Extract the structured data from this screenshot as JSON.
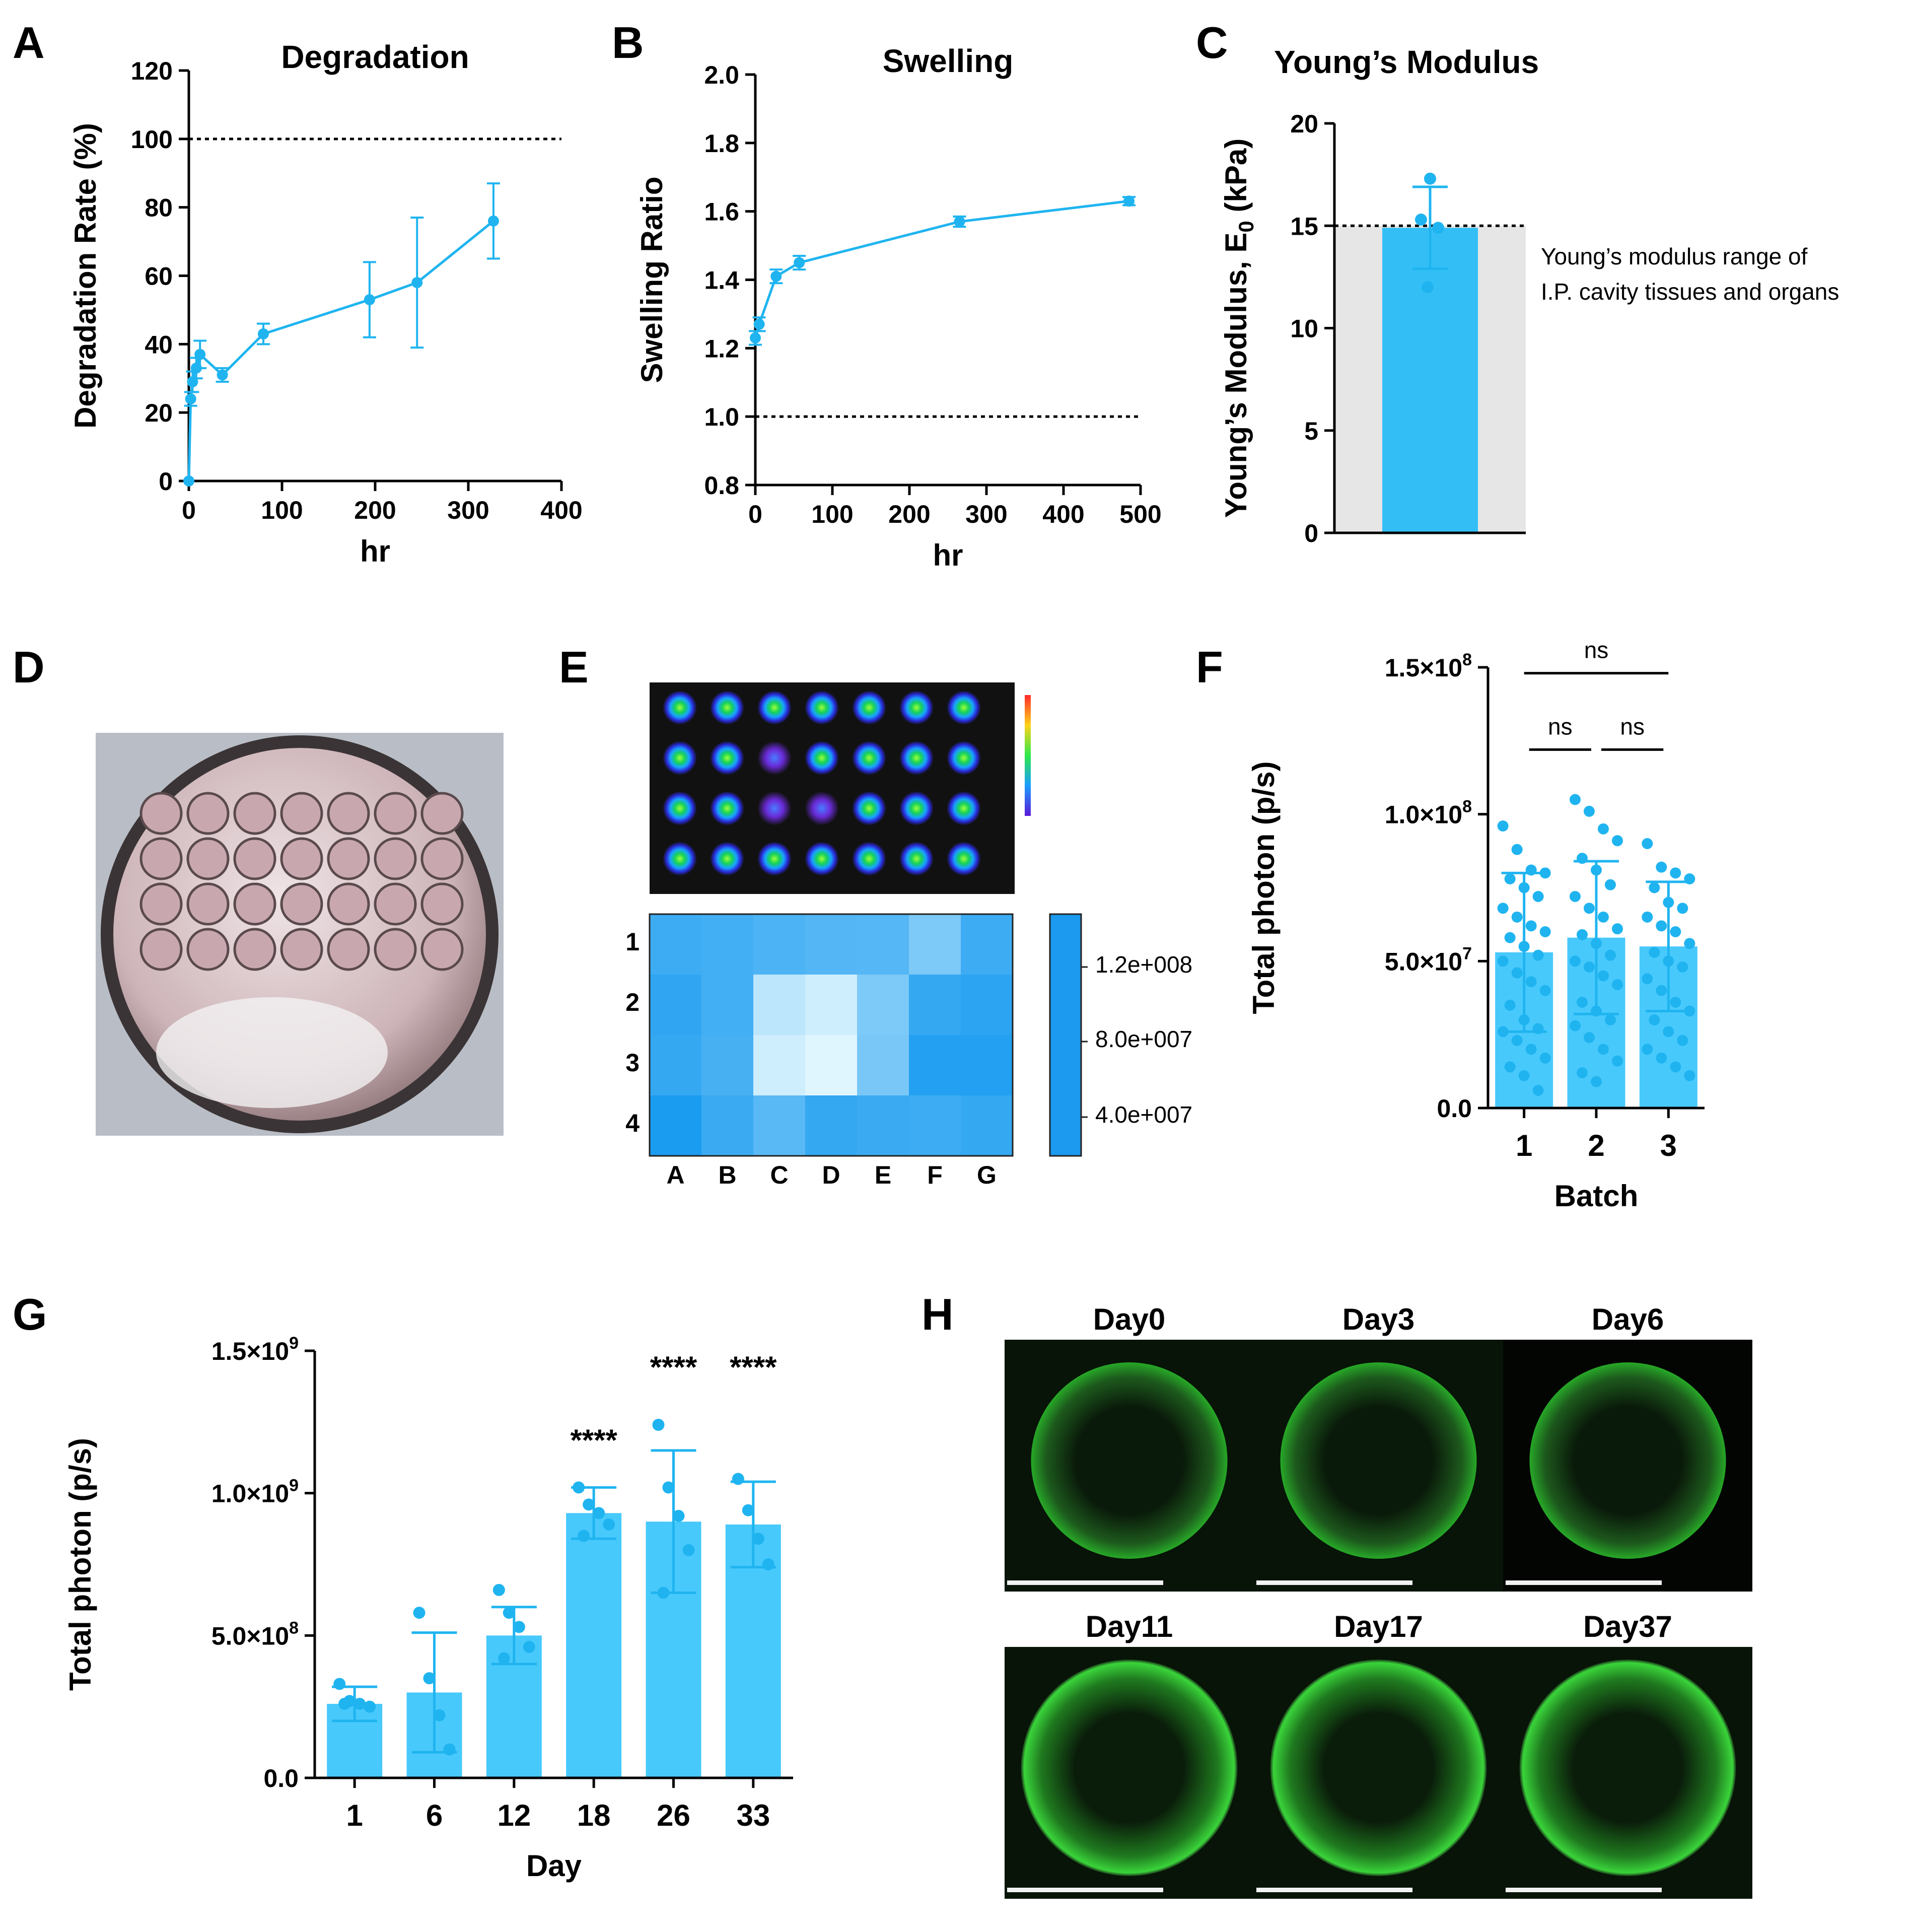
{
  "panels": {
    "A": "A",
    "B": "B",
    "C": "C",
    "D": "D",
    "E": "E",
    "F": "F",
    "G": "G",
    "H": "H"
  },
  "colors": {
    "accent": "#1fb4f0",
    "bar": "#48c9fc",
    "grey_band": "#e6e6e6",
    "fluor": "#1ed41e"
  },
  "chart_data": [
    {
      "id": "A",
      "type": "line",
      "title": "Degradation",
      "xlabel": "hr",
      "ylabel": "Degradation Rate (%)",
      "xlim": [
        0,
        400
      ],
      "ylim": [
        0,
        120
      ],
      "xticks": [
        0,
        100,
        200,
        300,
        400
      ],
      "yticks": [
        0,
        20,
        40,
        60,
        80,
        100,
        120
      ],
      "reference_line": 100,
      "x": [
        0,
        2,
        4,
        8,
        12,
        36,
        80,
        194,
        245,
        327
      ],
      "y": [
        0,
        24,
        29,
        33,
        37,
        31,
        43,
        53,
        58,
        76
      ],
      "err": [
        0,
        2,
        3,
        3,
        4,
        2,
        3,
        11,
        19,
        11
      ]
    },
    {
      "id": "B",
      "type": "line",
      "title": "Swelling",
      "xlabel": "hr",
      "ylabel": "Swelling Ratio",
      "xlim": [
        0,
        500
      ],
      "ylim": [
        0.8,
        2.0
      ],
      "xticks": [
        0,
        100,
        200,
        300,
        400,
        500
      ],
      "yticks": [
        "0.8",
        "1.0",
        "1.2",
        "1.4",
        "1.6",
        "1.8",
        "2.0"
      ],
      "reference_line": 1.0,
      "x": [
        0,
        5,
        27,
        57,
        265,
        485
      ],
      "y": [
        1.23,
        1.27,
        1.41,
        1.45,
        1.57,
        1.63
      ],
      "err": [
        0.02,
        0.02,
        0.02,
        0.02,
        0.015,
        0.012
      ]
    },
    {
      "id": "C",
      "type": "bar",
      "title": "Young’s Modulus",
      "ylabel_main": "Young’s Modulus, E",
      "ylabel_sub": "0",
      "ylabel_unit": " (kPa)",
      "ylim": [
        0,
        20
      ],
      "yticks": [
        0,
        5,
        10,
        15,
        20
      ],
      "value": 14.9,
      "err": 2.0,
      "points": [
        17.3,
        15.3,
        14.9,
        12.0
      ],
      "reference_line": 15,
      "annotation": [
        "Young’s modulus range of",
        "I.P. cavity tissues and organs"
      ]
    },
    {
      "id": "E",
      "type": "heatmap",
      "rows": [
        "1",
        "2",
        "3",
        "4"
      ],
      "cols": [
        "A",
        "B",
        "C",
        "D",
        "E",
        "F",
        "G"
      ],
      "values": [
        [
          0.6,
          0.62,
          0.68,
          0.72,
          0.73,
          0.95,
          0.6
        ],
        [
          0.52,
          0.62,
          1.3,
          1.4,
          0.95,
          0.55,
          0.5
        ],
        [
          0.55,
          0.65,
          1.4,
          1.5,
          0.92,
          0.45,
          0.45
        ],
        [
          0.4,
          0.58,
          0.75,
          0.55,
          0.58,
          0.6,
          0.55
        ]
      ],
      "colorbar_ticks": [
        "1.2e+008",
        "8.0e+007",
        "4.0e+007"
      ]
    },
    {
      "id": "F",
      "type": "bar",
      "xlabel": "Batch",
      "ylabel": "Total photon (p/s)",
      "categories": [
        "1",
        "2",
        "3"
      ],
      "ylim": [
        0,
        150000000.0
      ],
      "yticks": [
        {
          "v": 0,
          "t": "0.0",
          "e": ""
        },
        {
          "v": 50000000.0,
          "t": "5.0×10",
          "e": "7"
        },
        {
          "v": 100000000.0,
          "t": "1.0×10",
          "e": "8"
        },
        {
          "v": 150000000.0,
          "t": "1.5×10",
          "e": "8"
        }
      ],
      "values": [
        53000000.0,
        58000000.0,
        55000000.0
      ],
      "err": [
        27000000.0,
        26000000.0,
        22000000.0
      ],
      "points": [
        [
          96000000.0,
          88000000.0,
          81000000.0,
          80000000.0,
          78000000.0,
          75000000.0,
          72000000.0,
          68000000.0,
          65000000.0,
          62000000.0,
          60000000.0,
          58000000.0,
          55000000.0,
          52000000.0,
          50000000.0,
          46000000.0,
          43000000.0,
          40000000.0,
          35000000.0,
          30000000.0,
          27000000.0,
          26000000.0,
          23000000.0,
          20000000.0,
          17000000.0,
          14000000.0,
          11000000.0,
          6000000.0
        ],
        [
          105000000.0,
          101000000.0,
          95000000.0,
          91000000.0,
          85000000.0,
          81000000.0,
          76000000.0,
          72000000.0,
          68000000.0,
          65000000.0,
          61000000.0,
          59000000.0,
          56000000.0,
          52000000.0,
          50000000.0,
          48000000.0,
          45000000.0,
          42000000.0,
          36000000.0,
          33000000.0,
          30000000.0,
          28000000.0,
          24000000.0,
          20000000.0,
          16000000.0,
          12000000.0,
          9000000.0
        ],
        [
          90000000.0,
          82000000.0,
          80000000.0,
          78000000.0,
          75000000.0,
          70000000.0,
          68000000.0,
          65000000.0,
          62000000.0,
          60000000.0,
          56000000.0,
          53000000.0,
          50000000.0,
          48000000.0,
          44000000.0,
          40000000.0,
          36000000.0,
          33000000.0,
          30000000.0,
          26000000.0,
          23000000.0,
          20000000.0,
          17000000.0,
          14000000.0,
          11000000.0
        ]
      ],
      "significance": [
        {
          "from": "1",
          "to": "3",
          "label": "ns",
          "level": 148000000.0
        },
        {
          "from": "1",
          "to": "2",
          "label": "ns",
          "level": 122000000.0
        },
        {
          "from": "2",
          "to": "3",
          "label": "ns",
          "level": 122000000.0
        }
      ]
    },
    {
      "id": "G",
      "type": "bar",
      "xlabel": "Day",
      "ylabel": "Total photon (p/s)",
      "categories": [
        "1",
        "6",
        "12",
        "18",
        "26",
        "33"
      ],
      "ylim": [
        0,
        1500000000.0
      ],
      "yticks": [
        {
          "v": 0,
          "t": "0.0",
          "e": ""
        },
        {
          "v": 500000000.0,
          "t": "5.0×10",
          "e": "8"
        },
        {
          "v": 1000000000.0,
          "t": "1.0×10",
          "e": "9"
        },
        {
          "v": 1500000000.0,
          "t": "1.5×10",
          "e": "9"
        }
      ],
      "values": [
        260000000.0,
        300000000.0,
        500000000.0,
        930000000.0,
        900000000.0,
        890000000.0
      ],
      "err": [
        60000000.0,
        210000000.0,
        100000000.0,
        90000000.0,
        250000000.0,
        150000000.0
      ],
      "points": [
        [
          330000000.0,
          270000000.0,
          260000000.0,
          250000000.0,
          260000000.0
        ],
        [
          580000000.0,
          350000000.0,
          220000000.0,
          100000000.0
        ],
        [
          660000000.0,
          580000000.0,
          530000000.0,
          460000000.0,
          420000000.0
        ],
        [
          1020000000.0,
          960000000.0,
          930000000.0,
          890000000.0,
          850000000.0
        ],
        [
          1240000000.0,
          1020000000.0,
          920000000.0,
          800000000.0,
          650000000.0
        ],
        [
          1050000000.0,
          940000000.0,
          840000000.0,
          750000000.0
        ]
      ],
      "significance": [
        "",
        "",
        "",
        "****",
        "****",
        "****"
      ]
    }
  ],
  "panel_H": {
    "top_labels": [
      "Day0",
      "Day3",
      "Day6"
    ],
    "bottom_labels": [
      "Day11",
      "Day17",
      "Day37"
    ]
  }
}
